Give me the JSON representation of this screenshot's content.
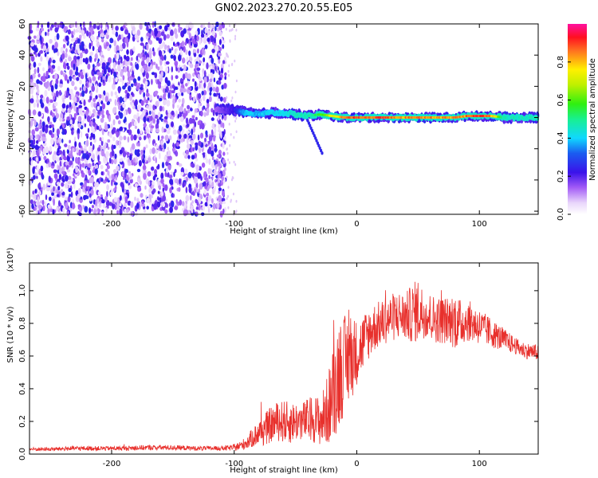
{
  "chart_data": [
    {
      "type": "heatmap",
      "title": "GN02.2023.270.20.55.E05",
      "xlabel": "Height of straight line (km)",
      "ylabel": "Frequency (Hz)",
      "xlim": [
        -267,
        148
      ],
      "ylim": [
        -62,
        60
      ],
      "x_ticks": [
        -200,
        -100,
        0,
        100
      ],
      "x_tick_labels": [
        "-200",
        "-100",
        "0",
        "100"
      ],
      "y_ticks": [
        60,
        40,
        20,
        0,
        -20,
        -40,
        -60
      ],
      "y_tick_labels": [
        "60",
        "40",
        "20",
        "0",
        "-20",
        "-40",
        "-60"
      ],
      "noise_region": {
        "x_range": [
          -267,
          -107
        ],
        "y_range": [
          -62,
          60
        ],
        "typical_amplitude": 0.15
      },
      "signal_ridge": {
        "x": [
          -115,
          -100,
          -90,
          -80,
          -70,
          -60,
          -50,
          -40,
          -30,
          -20,
          -10,
          0,
          10,
          20,
          30,
          40,
          50,
          60,
          70,
          80,
          90,
          100,
          110,
          120,
          130,
          140,
          148
        ],
        "frequency_hz": [
          5,
          5,
          3,
          2,
          3,
          3,
          2,
          1,
          2,
          1,
          0,
          0,
          0,
          0,
          0,
          0,
          0,
          0,
          0,
          0,
          1,
          1,
          1,
          0,
          0,
          0,
          0
        ],
        "amplitude": [
          0.15,
          0.25,
          0.45,
          0.4,
          0.45,
          0.45,
          0.5,
          0.5,
          0.6,
          0.8,
          0.9,
          0.95,
          0.95,
          0.95,
          0.92,
          0.9,
          0.95,
          0.9,
          0.9,
          0.9,
          0.92,
          0.95,
          0.9,
          0.5,
          0.5,
          0.5,
          0.5
        ]
      },
      "grid": false,
      "colorbar": {
        "label": "Normalized spectral amplitude",
        "range": [
          0.0,
          1.0
        ],
        "ticks": [
          0.0,
          0.2,
          0.4,
          0.6,
          0.8
        ],
        "tick_labels": [
          "0.0",
          "0.2",
          "0.4",
          "0.6",
          "0.8"
        ],
        "colormap": "white-purple-blue-cyan-green-yellow-red-magenta"
      }
    },
    {
      "type": "line",
      "xlabel": "Height of straight line (km)",
      "ylabel": "SNR (10 * v/v)",
      "y_multiplier": "(x10⁴)",
      "xlim": [
        -267,
        148
      ],
      "ylim": [
        0.0,
        1.17
      ],
      "x_ticks": [
        -200,
        -100,
        0,
        100
      ],
      "x_tick_labels": [
        "-200",
        "-100",
        "0",
        "100"
      ],
      "y_ticks": [
        0.0,
        0.2,
        0.4,
        0.6,
        0.8,
        1.0
      ],
      "y_tick_labels": [
        "0.0",
        "0.2",
        "0.4",
        "0.6",
        "0.8",
        "1.0"
      ],
      "grid": false,
      "series": [
        {
          "color": "#e8302c",
          "x": [
            -267,
            -250,
            -230,
            -210,
            -190,
            -170,
            -150,
            -130,
            -110,
            -100,
            -95,
            -90,
            -85,
            -80,
            -75,
            -70,
            -65,
            -60,
            -55,
            -50,
            -45,
            -40,
            -35,
            -30,
            -25,
            -20,
            -15,
            -10,
            -5,
            0,
            5,
            10,
            15,
            20,
            25,
            30,
            35,
            40,
            45,
            50,
            55,
            60,
            65,
            70,
            75,
            80,
            85,
            90,
            95,
            100,
            105,
            110,
            115,
            120,
            125,
            130,
            135,
            140,
            148
          ],
          "values": [
            0.03,
            0.03,
            0.035,
            0.035,
            0.035,
            0.04,
            0.04,
            0.035,
            0.035,
            0.04,
            0.05,
            0.07,
            0.1,
            0.13,
            0.15,
            0.18,
            0.2,
            0.2,
            0.19,
            0.2,
            0.2,
            0.21,
            0.22,
            0.2,
            0.25,
            0.35,
            0.5,
            0.55,
            0.6,
            0.62,
            0.68,
            0.74,
            0.78,
            0.8,
            0.82,
            0.84,
            0.85,
            0.84,
            0.86,
            0.88,
            0.86,
            0.84,
            0.82,
            0.82,
            0.82,
            0.82,
            0.8,
            0.82,
            0.8,
            0.78,
            0.76,
            0.74,
            0.72,
            0.7,
            0.68,
            0.66,
            0.64,
            0.63,
            0.62
          ],
          "noise_amplitude": [
            0.012,
            0.012,
            0.014,
            0.014,
            0.014,
            0.016,
            0.016,
            0.014,
            0.014,
            0.02,
            0.03,
            0.04,
            0.06,
            0.08,
            0.1,
            0.11,
            0.12,
            0.13,
            0.13,
            0.12,
            0.12,
            0.13,
            0.15,
            0.15,
            0.2,
            0.28,
            0.35,
            0.3,
            0.28,
            0.2,
            0.18,
            0.16,
            0.15,
            0.14,
            0.14,
            0.15,
            0.15,
            0.15,
            0.18,
            0.2,
            0.15,
            0.15,
            0.14,
            0.15,
            0.14,
            0.18,
            0.14,
            0.13,
            0.12,
            0.11,
            0.1,
            0.09,
            0.08,
            0.07,
            0.06,
            0.05,
            0.05,
            0.05,
            0.05
          ]
        }
      ]
    }
  ]
}
